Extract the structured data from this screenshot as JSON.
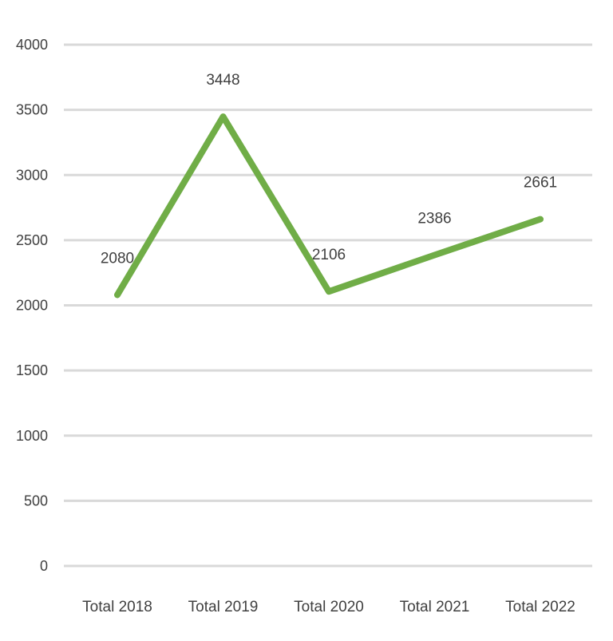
{
  "chart_data": {
    "type": "line",
    "title": "",
    "xlabel": "",
    "ylabel": "",
    "categories": [
      "Total 2018",
      "Total 2019",
      "Total 2020",
      "Total 2021",
      "Total 2022"
    ],
    "series": [
      {
        "values": [
          2080,
          3448,
          2106,
          2386,
          2661
        ],
        "color": "#70ad47"
      }
    ],
    "ylim": [
      0,
      4000
    ],
    "yticks": [
      0,
      500,
      1000,
      1500,
      2000,
      2500,
      3000,
      3500,
      4000
    ],
    "data_labels": [
      "2080",
      "3448",
      "2106",
      "2386",
      "2661"
    ],
    "grid": true,
    "legend": "none",
    "colors": {
      "line": "#70ad47",
      "grid": "#d9d9d9",
      "text": "#404040"
    }
  }
}
